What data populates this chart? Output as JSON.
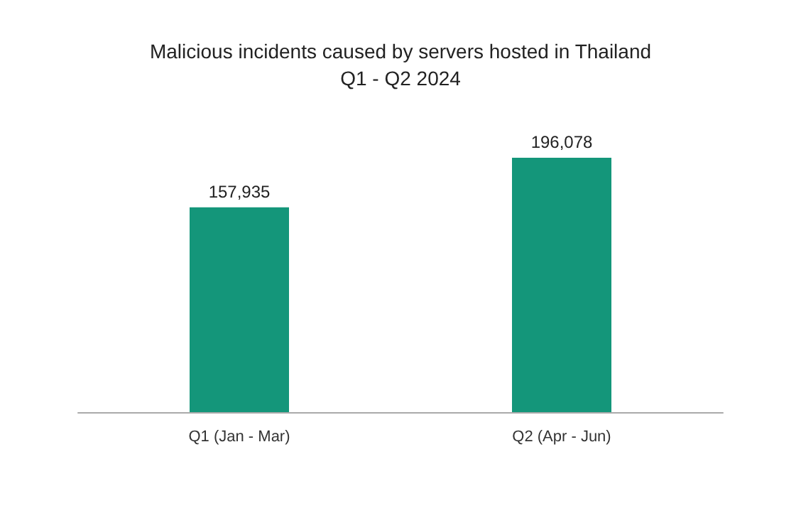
{
  "chart_data": {
    "type": "bar",
    "title": "Malicious incidents caused by servers hosted in Thailand",
    "subtitle": "Q1 - Q2 2024",
    "categories": [
      "Q1 (Jan - Mar)",
      "Q2 (Apr - Jun)"
    ],
    "values": [
      157935,
      196078
    ],
    "color": "#14967a",
    "value_labels": [
      "157,935",
      "196,078"
    ]
  }
}
